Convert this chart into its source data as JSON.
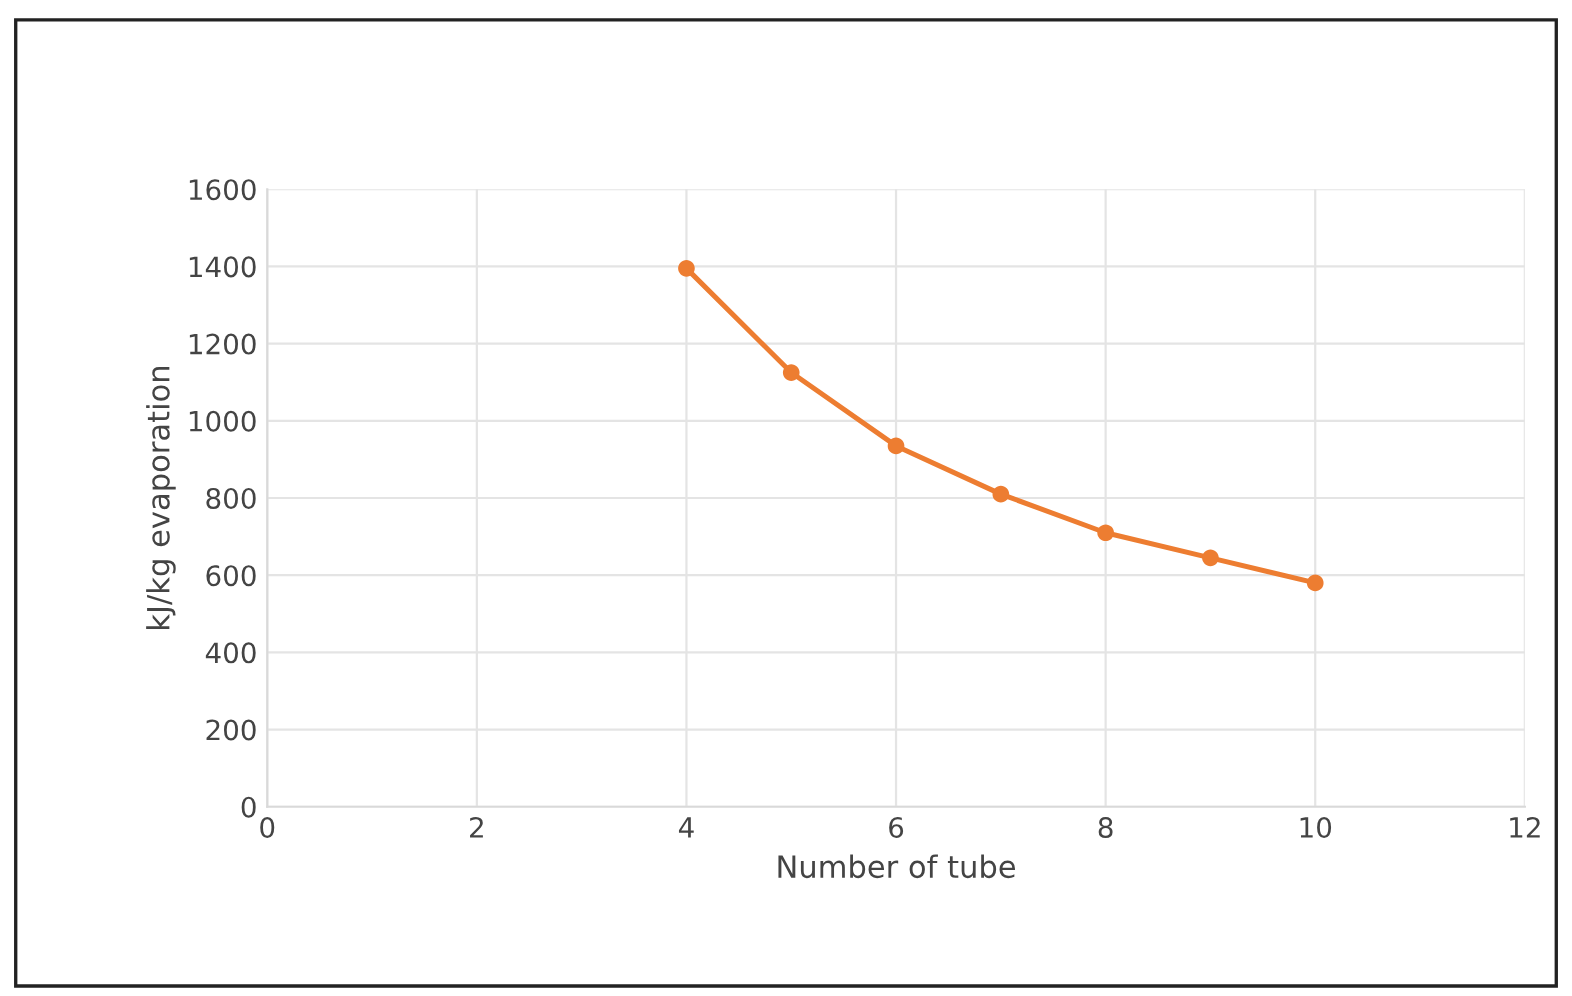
{
  "chart_data": {
    "type": "line",
    "xlabel": "Number of tube",
    "ylabel": "kJ/kg evaporation",
    "x": [
      4,
      5,
      6,
      7,
      8,
      9,
      10
    ],
    "series": [
      {
        "color": "#ed7d31",
        "values": [
          1395,
          1125,
          935,
          810,
          710,
          645,
          580
        ]
      }
    ],
    "xlim": [
      0,
      12
    ],
    "xticks": [
      0,
      2,
      4,
      6,
      8,
      10,
      12
    ],
    "ylim": [
      0,
      1600
    ],
    "yticks": [
      0,
      200,
      400,
      600,
      800,
      1000,
      1200,
      1400,
      1600
    ],
    "grid": true,
    "marker": "circle",
    "line_style": "solid"
  }
}
